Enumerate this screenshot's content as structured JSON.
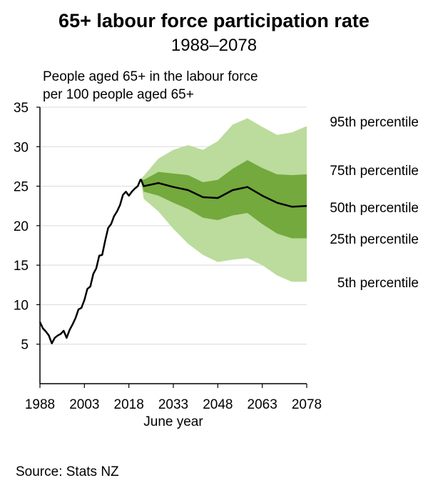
{
  "title": "65+ labour force participation rate",
  "subtitle": "1988–2078",
  "ylabel_line1": "People aged 65+ in the labour force",
  "ylabel_line2": "per 100 people aged 65+",
  "source": "Source: Stats NZ",
  "chart_data": {
    "type": "line",
    "title": "65+ labour force participation rate",
    "subtitle": "1988–2078",
    "xlabel": "June year",
    "ylabel": "People aged 65+ in the labour force per 100 people aged 65+",
    "xlim": [
      1988,
      2078
    ],
    "ylim": [
      0,
      35
    ],
    "yticks": [
      5,
      10,
      15,
      20,
      25,
      30,
      35
    ],
    "xticks": [
      1988,
      2003,
      2018,
      2033,
      2048,
      2063,
      2078
    ],
    "grid": true,
    "colors": {
      "outer_band": "#bbdc9c",
      "inner_band": "#73a93d",
      "line": "#000000"
    },
    "historical": {
      "name": "Historical",
      "x": [
        1988,
        1989,
        1990,
        1991,
        1992,
        1993,
        1994,
        1995,
        1996,
        1997,
        1998,
        1999,
        2000,
        2001,
        2002,
        2003,
        2004,
        2005,
        2006,
        2007,
        2008,
        2009,
        2010,
        2011,
        2012,
        2013,
        2014,
        2015,
        2016,
        2017,
        2018,
        2019,
        2020,
        2021,
        2022
      ],
      "y": [
        7.8,
        7.0,
        6.6,
        6.1,
        5.1,
        5.8,
        6.1,
        6.3,
        6.7,
        5.8,
        6.8,
        7.5,
        8.3,
        9.4,
        9.6,
        10.6,
        12.0,
        12.3,
        13.9,
        14.6,
        16.2,
        16.3,
        18.1,
        19.7,
        20.2,
        21.2,
        21.8,
        22.6,
        23.9,
        24.3,
        23.8,
        24.3,
        24.7,
        25.0,
        25.9
      ]
    },
    "projection_x": [
      2022,
      2023,
      2028,
      2033,
      2038,
      2043,
      2048,
      2053,
      2058,
      2063,
      2068,
      2073,
      2078
    ],
    "percentiles": [
      {
        "name": "95th percentile",
        "values": [
          25.9,
          26.3,
          28.5,
          29.6,
          30.2,
          29.6,
          30.7,
          32.8,
          33.6,
          32.5,
          31.5,
          31.8,
          32.6
        ]
      },
      {
        "name": "75th percentile",
        "values": [
          25.9,
          25.8,
          26.8,
          26.6,
          26.4,
          25.5,
          25.8,
          27.2,
          28.3,
          27.3,
          26.5,
          26.4,
          26.5
        ]
      },
      {
        "name": "50th percentile",
        "values": [
          25.9,
          25.0,
          25.4,
          24.9,
          24.5,
          23.6,
          23.5,
          24.5,
          24.9,
          23.8,
          22.9,
          22.4,
          22.5
        ]
      },
      {
        "name": "25th percentile",
        "values": [
          25.9,
          24.3,
          23.8,
          22.9,
          22.1,
          21.0,
          20.7,
          21.3,
          21.6,
          20.2,
          19.0,
          18.4,
          18.4
        ]
      },
      {
        "name": "5th percentile",
        "values": [
          25.9,
          23.4,
          21.8,
          19.6,
          17.7,
          16.3,
          15.4,
          15.7,
          15.9,
          15.0,
          13.7,
          12.9,
          12.9
        ]
      }
    ]
  }
}
